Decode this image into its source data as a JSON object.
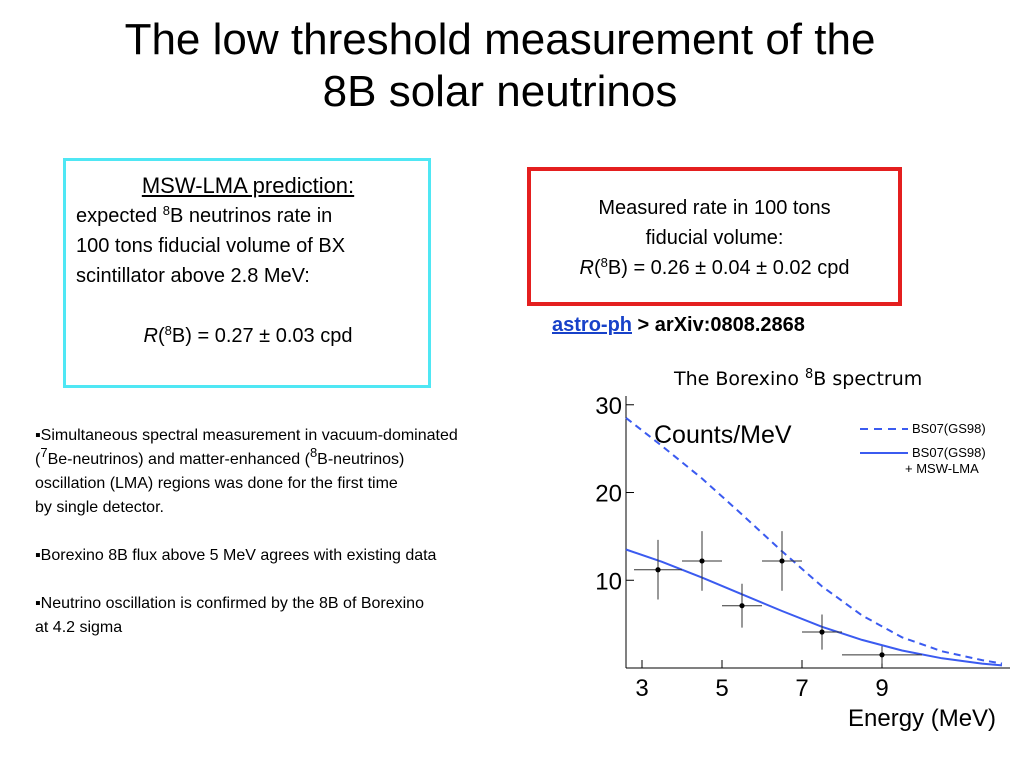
{
  "slide": {
    "title_line1": "The low threshold measurement of the",
    "title_line2": "8B solar neutrinos"
  },
  "prediction_box": {
    "heading": "MSW-LMA prediction:",
    "line1_pre": "expected ",
    "line1_sup": "8",
    "line1_post": "B neutrinos rate in",
    "line2": "100 tons fiducial volume of BX",
    "line3": "scintillator above 2.8 MeV:",
    "formula_r": "R",
    "formula_open": "(",
    "formula_sup": "8",
    "formula_rest": "B) = 0.27 ± 0.03 cpd"
  },
  "measured_box": {
    "line1": "Measured rate in 100 tons",
    "line2": "fiducial volume:",
    "formula_r": "R",
    "formula_open": "(",
    "formula_sup": "8",
    "formula_rest": "B) = 0.26 ± 0.04 ± 0.02 cpd"
  },
  "reference": {
    "link_text": "astro-ph",
    "rest": " > arXiv:0808.2868"
  },
  "bullets": [
    {
      "l1": "▪Simultaneous spectral measurement in  vacuum-dominated",
      "l2_a": "(",
      "l2_sup1": "7",
      "l2_b": "Be-neutrinos) and matter-enhanced (",
      "l2_sup2": "8",
      "l2_c": "B-neutrinos)",
      "l3": "oscillation (LMA) regions was done for the first time",
      "l4": "by single detector."
    },
    {
      "l1": "▪Borexino 8B flux above 5 MeV agrees with existing data"
    },
    {
      "l1": "▪Neutrino oscillation is confirmed by the 8B of Borexino",
      "l2": "at 4.2 sigma"
    }
  ],
  "spectrum_caption": {
    "pre": "The Borexino ",
    "sup": "8",
    "post": "B spectrum"
  },
  "chart_data": {
    "type": "scatter",
    "ylabel": "Counts/MeV",
    "xlabel": "Energy (MeV)",
    "xlim": [
      2.6,
      12.2
    ],
    "ylim": [
      0,
      31
    ],
    "x_ticks": [
      "3",
      "5",
      "7",
      "9"
    ],
    "x_tick_values": [
      3,
      5,
      7,
      9
    ],
    "y_ticks": [
      "10",
      "20",
      "30"
    ],
    "y_tick_values": [
      10,
      20,
      30
    ],
    "legend": [
      {
        "label": "BS07(GS98)",
        "style": "dashed"
      },
      {
        "label": "BS07(GS98)",
        "label2": "+ MSW-LMA",
        "style": "solid"
      }
    ],
    "line_color": "#3b5bf0",
    "series": [
      {
        "name": "BS07(GS98)",
        "style": "dashed",
        "x": [
          2.6,
          3.5,
          4.5,
          5.5,
          6.5,
          7.5,
          8.5,
          9.5,
          10.5,
          11.5,
          12.0
        ],
        "y": [
          28.5,
          25.3,
          21.6,
          17.5,
          13.3,
          9.3,
          6.0,
          3.5,
          1.9,
          0.9,
          0.5
        ]
      },
      {
        "name": "BS07(GS98) + MSW-LMA",
        "style": "solid",
        "x": [
          2.6,
          3.5,
          4.5,
          5.5,
          6.5,
          7.5,
          8.5,
          9.5,
          10.5,
          11.5,
          12.0
        ],
        "y": [
          13.5,
          12.1,
          10.3,
          8.4,
          6.5,
          4.7,
          3.2,
          2.0,
          1.1,
          0.5,
          0.3
        ]
      }
    ],
    "points": [
      {
        "x": 3.4,
        "y": 11.2,
        "xerr": 0.6,
        "yerr": 3.4
      },
      {
        "x": 4.5,
        "y": 12.2,
        "xerr": 0.5,
        "yerr": 3.4
      },
      {
        "x": 5.5,
        "y": 7.1,
        "xerr": 0.5,
        "yerr": 2.5
      },
      {
        "x": 6.5,
        "y": 12.2,
        "xerr": 0.5,
        "yerr": 3.4
      },
      {
        "x": 7.5,
        "y": 4.1,
        "xerr": 0.5,
        "yerr": 2.0
      },
      {
        "x": 9.0,
        "y": 1.5,
        "xerr": 1.0,
        "yerr": 1.0
      }
    ]
  }
}
